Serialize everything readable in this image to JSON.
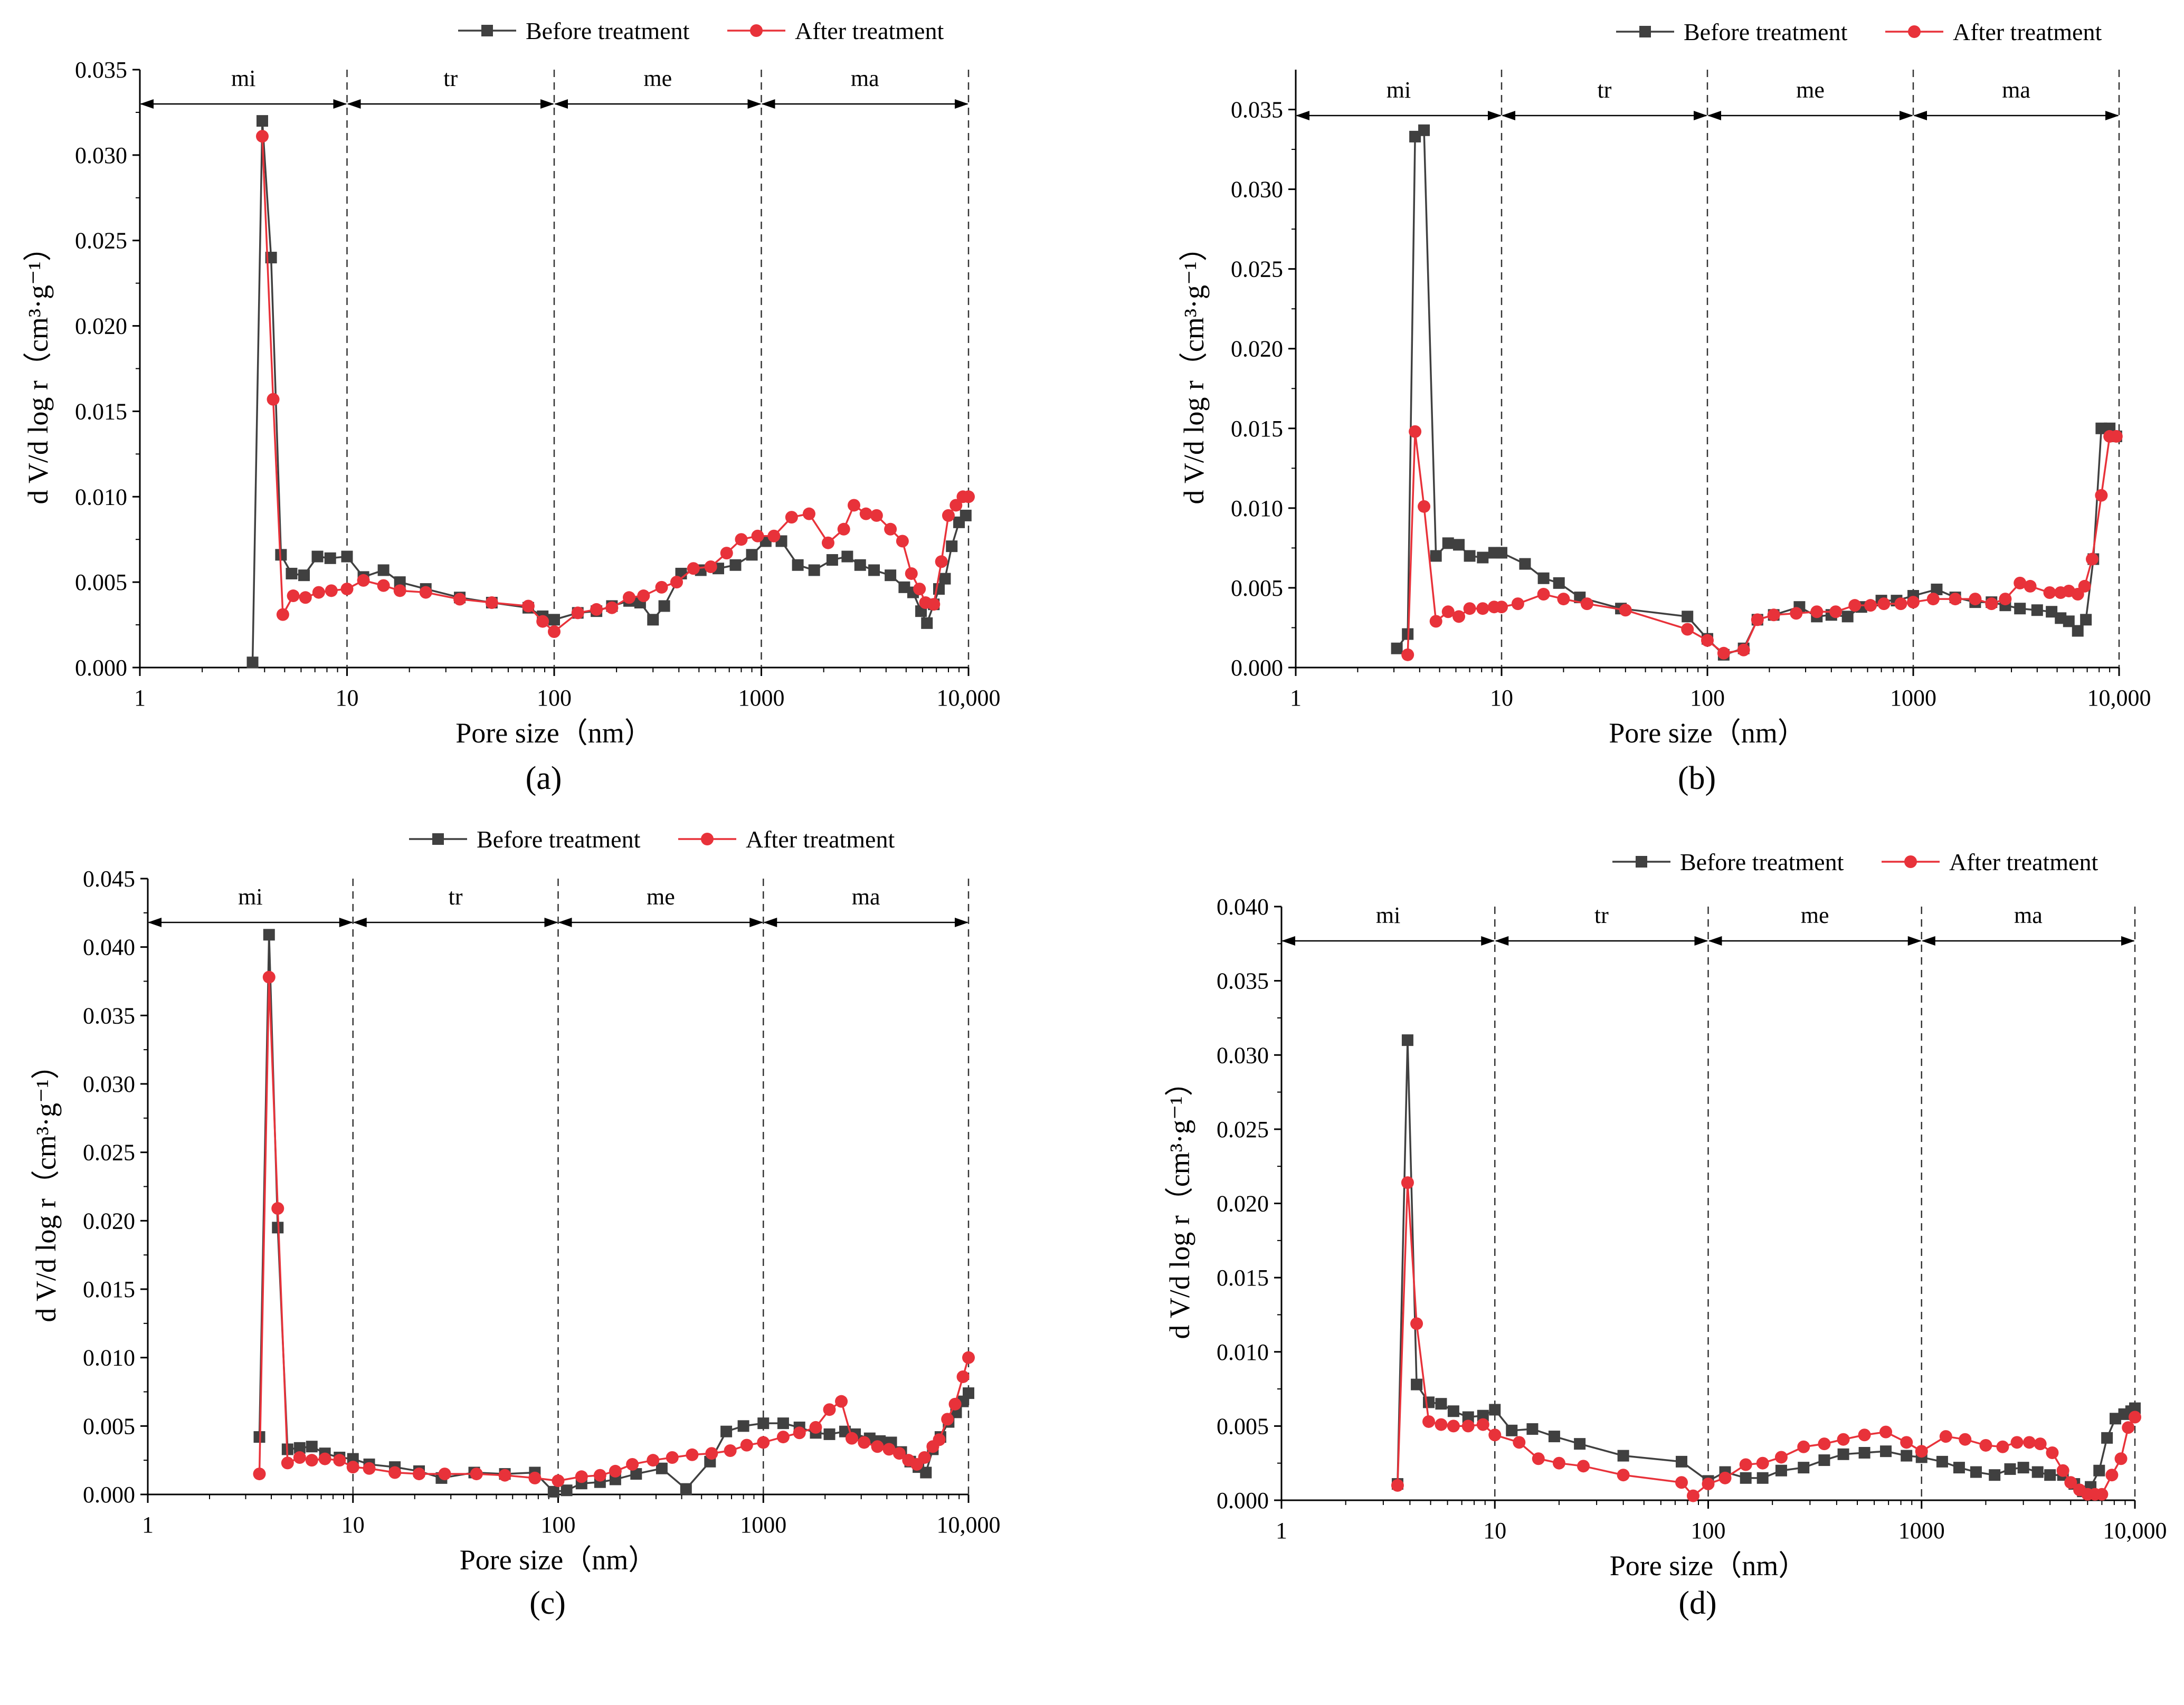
{
  "figure": {
    "legend": {
      "before": "Before treatment",
      "after": "After treatment"
    },
    "colors": {
      "before": "#404040",
      "after": "#e8323a",
      "axis": "#000000"
    },
    "xlabel": "Pore size（nm）",
    "ylabel_main": "d V/d log r",
    "ylabel_units": "（cm³·g⁻¹）",
    "regions": [
      "mi",
      "tr",
      "me",
      "ma"
    ],
    "region_bounds": [
      1,
      10,
      100,
      1000,
      10000
    ],
    "xticks": [
      1,
      10,
      100,
      1000,
      10000
    ],
    "xtick_labels": [
      "1",
      "10",
      "100",
      "1000",
      "10,000"
    ]
  },
  "chart_data": [
    {
      "type": "line",
      "panel": "a",
      "caption": "(a)",
      "xscale": "log",
      "xlim": [
        1,
        10000
      ],
      "ylim": [
        0,
        0.035
      ],
      "yticks": [
        0,
        0.005,
        0.01,
        0.015,
        0.02,
        0.025,
        0.03,
        0.035
      ],
      "ytick_labels": [
        "0.000",
        "0.005",
        "0.010",
        "0.015",
        "0.020",
        "0.025",
        "0.030",
        "0.035"
      ],
      "series": [
        {
          "name": "Before treatment",
          "x": [
            3.5,
            3.9,
            4.3,
            4.8,
            5.4,
            6.2,
            7.2,
            8.3,
            10,
            12,
            15,
            18,
            24,
            35,
            50,
            75,
            88,
            100,
            130,
            160,
            190,
            230,
            260,
            300,
            340,
            410,
            510,
            620,
            750,
            900,
            1050,
            1250,
            1500,
            1800,
            2200,
            2600,
            3000,
            3500,
            4200,
            4900,
            5400,
            5900,
            6300,
            6800,
            7200,
            7700,
            8300,
            9000,
            9700
          ],
          "y": [
            0.0003,
            0.032,
            0.024,
            0.0066,
            0.0055,
            0.0054,
            0.0065,
            0.0064,
            0.0065,
            0.0053,
            0.0057,
            0.005,
            0.0046,
            0.0041,
            0.0038,
            0.0035,
            0.003,
            0.0028,
            0.0032,
            0.0033,
            0.0036,
            0.0039,
            0.0038,
            0.0028,
            0.0036,
            0.0055,
            0.0057,
            0.0058,
            0.006,
            0.0066,
            0.0074,
            0.0074,
            0.006,
            0.0057,
            0.0063,
            0.0065,
            0.006,
            0.0057,
            0.0054,
            0.0047,
            0.0044,
            0.0033,
            0.0026,
            0.0037,
            0.0046,
            0.0052,
            0.0071,
            0.0085,
            0.0089
          ]
        },
        {
          "name": "After treatment",
          "x": [
            3.9,
            4.4,
            4.9,
            5.5,
            6.3,
            7.3,
            8.4,
            10,
            12,
            15,
            18,
            24,
            35,
            50,
            75,
            88,
            100,
            130,
            160,
            190,
            230,
            270,
            330,
            390,
            470,
            570,
            680,
            800,
            960,
            1150,
            1400,
            1700,
            2100,
            2500,
            2800,
            3200,
            3600,
            4200,
            4800,
            5300,
            5800,
            6200,
            6800,
            7400,
            8000,
            8700,
            9400,
            10000
          ],
          "y": [
            0.0311,
            0.0157,
            0.0031,
            0.0042,
            0.0041,
            0.0044,
            0.0045,
            0.0046,
            0.0051,
            0.0048,
            0.0045,
            0.0044,
            0.004,
            0.0038,
            0.0036,
            0.0027,
            0.0021,
            0.0032,
            0.0034,
            0.0035,
            0.0041,
            0.0042,
            0.0047,
            0.005,
            0.0058,
            0.0059,
            0.0067,
            0.0075,
            0.0077,
            0.0077,
            0.0088,
            0.009,
            0.0073,
            0.0081,
            0.0095,
            0.009,
            0.0089,
            0.0081,
            0.0074,
            0.0055,
            0.0046,
            0.0038,
            0.0037,
            0.0062,
            0.0089,
            0.0095,
            0.01,
            0.01
          ]
        }
      ]
    },
    {
      "type": "line",
      "panel": "b",
      "caption": "(b)",
      "xscale": "log",
      "xlim": [
        1,
        10000
      ],
      "ylim": [
        0,
        0.0375
      ],
      "yticks": [
        0,
        0.005,
        0.01,
        0.015,
        0.02,
        0.025,
        0.03,
        0.035
      ],
      "ytick_labels": [
        "0.000",
        "0.005",
        "0.010",
        "0.015",
        "0.020",
        "0.025",
        "0.030",
        "0.035"
      ],
      "series": [
        {
          "name": "Before treatment",
          "x": [
            3.1,
            3.5,
            3.8,
            4.2,
            4.8,
            5.5,
            6.2,
            7.0,
            8.1,
            9.2,
            10,
            13,
            16,
            19,
            24,
            38,
            80,
            100,
            120,
            150,
            175,
            210,
            280,
            340,
            400,
            480,
            560,
            700,
            830,
            1000,
            1300,
            1600,
            2000,
            2400,
            2800,
            3300,
            4000,
            4700,
            5200,
            5700,
            6300,
            6900,
            7500,
            8200,
            9000,
            9700
          ],
          "y": [
            0.0012,
            0.0021,
            0.0333,
            0.0337,
            0.007,
            0.0078,
            0.0077,
            0.007,
            0.0069,
            0.0072,
            0.0072,
            0.0065,
            0.0056,
            0.0053,
            0.0044,
            0.0037,
            0.0032,
            0.0018,
            0.0008,
            0.0012,
            0.003,
            0.0033,
            0.0038,
            0.0032,
            0.0033,
            0.0032,
            0.0038,
            0.0042,
            0.0042,
            0.0045,
            0.0049,
            0.0044,
            0.0041,
            0.0041,
            0.0039,
            0.0037,
            0.0036,
            0.0035,
            0.0031,
            0.0029,
            0.0023,
            0.003,
            0.0068,
            0.015,
            0.015,
            0.0145
          ]
        },
        {
          "name": "After treatment",
          "x": [
            3.5,
            3.8,
            4.2,
            4.8,
            5.5,
            6.2,
            7.0,
            8.1,
            9.2,
            10,
            12,
            16,
            20,
            26,
            40,
            80,
            100,
            120,
            150,
            175,
            210,
            270,
            340,
            420,
            520,
            620,
            720,
            870,
            1000,
            1250,
            1600,
            2000,
            2400,
            2800,
            3300,
            3700,
            4600,
            5200,
            5700,
            6300,
            6800,
            7400,
            8200,
            9000,
            9700
          ],
          "y": [
            0.0008,
            0.0148,
            0.0101,
            0.0029,
            0.0035,
            0.0032,
            0.0037,
            0.0037,
            0.0038,
            0.0038,
            0.004,
            0.0046,
            0.0043,
            0.004,
            0.0036,
            0.0024,
            0.0017,
            0.0009,
            0.0011,
            0.003,
            0.0033,
            0.0034,
            0.0035,
            0.0035,
            0.0039,
            0.0039,
            0.004,
            0.004,
            0.0041,
            0.0043,
            0.0043,
            0.0043,
            0.004,
            0.0043,
            0.0053,
            0.0051,
            0.0047,
            0.0047,
            0.0048,
            0.0046,
            0.0051,
            0.0068,
            0.0108,
            0.0145,
            0.0145
          ]
        }
      ]
    },
    {
      "type": "line",
      "panel": "c",
      "caption": "(c)",
      "xscale": "log",
      "xlim": [
        1,
        10000
      ],
      "ylim": [
        0,
        0.045
      ],
      "yticks": [
        0,
        0.005,
        0.01,
        0.015,
        0.02,
        0.025,
        0.03,
        0.035,
        0.04,
        0.045
      ],
      "ytick_labels": [
        "0.000",
        "0.005",
        "0.010",
        "0.015",
        "0.020",
        "0.025",
        "0.030",
        "0.035",
        "0.040",
        "0.045"
      ],
      "series": [
        {
          "name": "Before treatment",
          "x": [
            3.5,
            3.9,
            4.3,
            4.8,
            5.5,
            6.3,
            7.3,
            8.6,
            10,
            12,
            16,
            21,
            27,
            39,
            55,
            77,
            95,
            110,
            130,
            160,
            190,
            240,
            320,
            420,
            550,
            660,
            800,
            1000,
            1250,
            1500,
            1800,
            2100,
            2500,
            2800,
            3300,
            3700,
            4200,
            4700,
            5200,
            5700,
            6200,
            6700,
            7300,
            8000,
            8700,
            9400,
            10000
          ],
          "y": [
            0.0042,
            0.0409,
            0.0195,
            0.0033,
            0.0034,
            0.0035,
            0.003,
            0.0027,
            0.0026,
            0.0022,
            0.002,
            0.0017,
            0.0012,
            0.0016,
            0.0015,
            0.0016,
            0.0002,
            0.0003,
            0.0008,
            0.0009,
            0.0011,
            0.0015,
            0.0019,
            0.0004,
            0.0024,
            0.0046,
            0.005,
            0.0052,
            0.0052,
            0.0049,
            0.0045,
            0.0044,
            0.0046,
            0.0044,
            0.0041,
            0.0039,
            0.0038,
            0.0031,
            0.0024,
            0.002,
            0.0016,
            0.0033,
            0.0042,
            0.0053,
            0.006,
            0.0068,
            0.0074
          ]
        },
        {
          "name": "After treatment",
          "x": [
            3.5,
            3.9,
            4.3,
            4.8,
            5.5,
            6.3,
            7.3,
            8.6,
            10,
            12,
            16,
            21,
            28,
            40,
            55,
            77,
            100,
            130,
            160,
            190,
            230,
            290,
            360,
            450,
            560,
            690,
            830,
            1000,
            1250,
            1500,
            1800,
            2100,
            2400,
            2700,
            3100,
            3600,
            4100,
            4600,
            5100,
            5600,
            6100,
            6700,
            7200,
            7900,
            8600,
            9400,
            10000
          ],
          "y": [
            0.0015,
            0.0378,
            0.0209,
            0.0023,
            0.0027,
            0.0025,
            0.0026,
            0.0025,
            0.002,
            0.0019,
            0.0016,
            0.0015,
            0.0015,
            0.0015,
            0.0014,
            0.0012,
            0.001,
            0.0013,
            0.0014,
            0.0017,
            0.0022,
            0.0025,
            0.0027,
            0.0029,
            0.003,
            0.0032,
            0.0036,
            0.0038,
            0.0042,
            0.0045,
            0.0049,
            0.0062,
            0.0068,
            0.0041,
            0.0038,
            0.0035,
            0.0033,
            0.003,
            0.0025,
            0.0022,
            0.0027,
            0.0035,
            0.004,
            0.0055,
            0.0066,
            0.0086,
            0.01
          ]
        }
      ]
    },
    {
      "type": "line",
      "panel": "d",
      "caption": "(d)",
      "xscale": "log",
      "xlim": [
        1,
        10000
      ],
      "ylim": [
        0,
        0.04
      ],
      "yticks": [
        0,
        0.005,
        0.01,
        0.015,
        0.02,
        0.025,
        0.03,
        0.035,
        0.04
      ],
      "ytick_labels": [
        "0.000",
        "0.005",
        "0.010",
        "0.015",
        "0.020",
        "0.025",
        "0.030",
        "0.035",
        "0.040"
      ],
      "series": [
        {
          "name": "Before treatment",
          "x": [
            3.5,
            3.9,
            4.3,
            4.9,
            5.6,
            6.4,
            7.5,
            8.8,
            10,
            12,
            15,
            19,
            25,
            40,
            75,
            100,
            120,
            150,
            180,
            220,
            280,
            350,
            430,
            540,
            680,
            850,
            1000,
            1250,
            1500,
            1800,
            2200,
            2600,
            3000,
            3500,
            4000,
            4600,
            5200,
            5700,
            6200,
            6800,
            7400,
            8100,
            8900,
            9600,
            10000
          ],
          "y": [
            0.0011,
            0.031,
            0.0078,
            0.0066,
            0.0065,
            0.006,
            0.0056,
            0.0057,
            0.0061,
            0.0047,
            0.0048,
            0.0043,
            0.0038,
            0.003,
            0.0026,
            0.0013,
            0.0019,
            0.0015,
            0.0015,
            0.002,
            0.0022,
            0.0027,
            0.0031,
            0.0032,
            0.0033,
            0.003,
            0.0029,
            0.0026,
            0.0022,
            0.0019,
            0.0017,
            0.0021,
            0.0022,
            0.0019,
            0.0017,
            0.0017,
            0.0011,
            0.0006,
            0.0009,
            0.002,
            0.0042,
            0.0055,
            0.0058,
            0.006,
            0.0062
          ]
        },
        {
          "name": "After treatment",
          "x": [
            3.5,
            3.9,
            4.3,
            4.9,
            5.6,
            6.4,
            7.5,
            8.8,
            10,
            13,
            16,
            20,
            26,
            40,
            75,
            85,
            100,
            120,
            150,
            180,
            220,
            280,
            350,
            430,
            540,
            680,
            850,
            1000,
            1300,
            1600,
            2000,
            2400,
            2800,
            3200,
            3600,
            4100,
            4600,
            5000,
            5500,
            6000,
            6500,
            7000,
            7800,
            8600,
            9300,
            10000
          ],
          "y": [
            0.001,
            0.0214,
            0.0119,
            0.0053,
            0.0051,
            0.005,
            0.005,
            0.0051,
            0.0044,
            0.0039,
            0.0028,
            0.0025,
            0.0023,
            0.0017,
            0.0012,
            0.0003,
            0.0011,
            0.0015,
            0.0024,
            0.0025,
            0.0029,
            0.0036,
            0.0038,
            0.0041,
            0.0044,
            0.0046,
            0.0039,
            0.0033,
            0.0043,
            0.0041,
            0.0037,
            0.0036,
            0.0039,
            0.0039,
            0.0038,
            0.0032,
            0.002,
            0.0012,
            0.0007,
            0.0004,
            0.0004,
            0.0004,
            0.0017,
            0.0028,
            0.0049,
            0.0056
          ]
        }
      ]
    }
  ]
}
